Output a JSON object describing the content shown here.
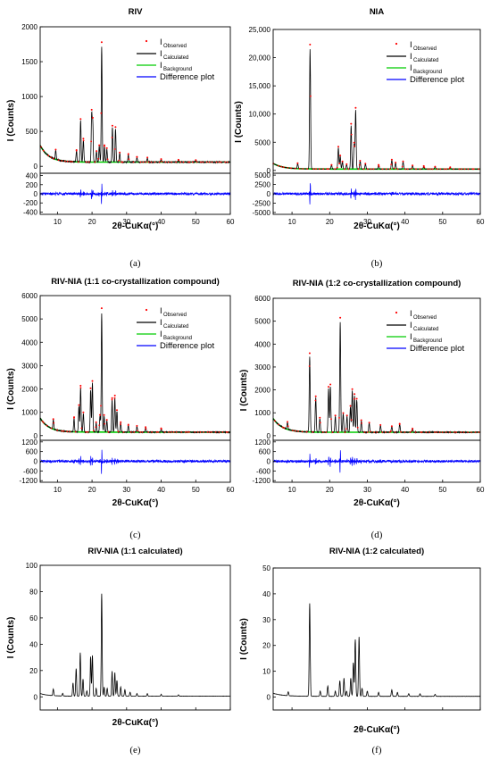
{
  "chart_data": [
    {
      "id": "a",
      "type": "line",
      "title": "RIV",
      "caption": "(a)",
      "xlabel": "2θ-CuKα(°)",
      "ylabel": "I (Counts)",
      "xlim": [
        5,
        60
      ],
      "xticks": [
        "10",
        "20",
        "30",
        "40",
        "50",
        "60"
      ],
      "ylim": [
        -100,
        2000
      ],
      "yticks": [
        "0",
        "500",
        "1000",
        "1500",
        "2000"
      ],
      "diff_ylim": [
        -450,
        450
      ],
      "diff_yticks": [
        "400",
        "200",
        "0",
        "-200",
        "-400"
      ],
      "background": 60,
      "peaks": [
        [
          9.5,
          130
        ],
        [
          15.5,
          160
        ],
        [
          16.7,
          590
        ],
        [
          17.5,
          320
        ],
        [
          19.9,
          680
        ],
        [
          20.2,
          560
        ],
        [
          21.3,
          150
        ],
        [
          22.1,
          230
        ],
        [
          22.8,
          1650
        ],
        [
          23.6,
          230
        ],
        [
          24.3,
          190
        ],
        [
          25.9,
          500
        ],
        [
          26.8,
          480
        ],
        [
          28.0,
          130
        ],
        [
          30.5,
          110
        ],
        [
          33,
          70
        ],
        [
          36,
          60
        ],
        [
          40,
          40
        ],
        [
          45,
          30
        ],
        [
          50,
          25
        ]
      ],
      "legend": [
        "Observed",
        "Calculated",
        "Background",
        "Difference plot"
      ]
    },
    {
      "id": "b",
      "type": "line",
      "title": "NIA",
      "caption": "(b)",
      "xlabel": "2θ-CuKα(°)",
      "ylabel": "I (Counts)",
      "xlim": [
        5,
        60
      ],
      "xticks": [
        "10",
        "20",
        "30",
        "40",
        "50",
        "60"
      ],
      "ylim": [
        -500,
        25000
      ],
      "yticks": [
        "0",
        "5000",
        "10,000",
        "15,000",
        "20,000",
        "25,000"
      ],
      "diff_ylim": [
        -5500,
        5500
      ],
      "diff_yticks": [
        "5000",
        "2500",
        "0",
        "-2500",
        "-5000"
      ],
      "background": 250,
      "peaks": [
        [
          11.5,
          900
        ],
        [
          14.8,
          21200
        ],
        [
          20.5,
          700
        ],
        [
          22.3,
          3800
        ],
        [
          22.8,
          2300
        ],
        [
          23.4,
          1300
        ],
        [
          24.5,
          800
        ],
        [
          25.7,
          7700
        ],
        [
          26.5,
          4400
        ],
        [
          26.9,
          10400
        ],
        [
          28.1,
          1400
        ],
        [
          29.5,
          900
        ],
        [
          33,
          700
        ],
        [
          36.5,
          1600
        ],
        [
          37.5,
          1100
        ],
        [
          39.5,
          1300
        ],
        [
          42,
          600
        ],
        [
          45,
          500
        ],
        [
          48,
          400
        ],
        [
          52,
          300
        ]
      ],
      "legend": [
        "Observed",
        "Calculated",
        "Background",
        "Difference plot"
      ]
    },
    {
      "id": "c",
      "type": "line",
      "title": "RIV-NIA (1:1 co-crystallization compound)",
      "caption": "(c)",
      "xlabel": "2θ-CuKα(°)",
      "ylabel": "I (Counts)",
      "xlim": [
        5,
        60
      ],
      "xticks": [
        "10",
        "20",
        "30",
        "40",
        "50",
        "60"
      ],
      "ylim": [
        -200,
        6000
      ],
      "yticks": [
        "0",
        "1000",
        "2000",
        "3000",
        "4000",
        "5000",
        "6000"
      ],
      "diff_ylim": [
        -1300,
        1300
      ],
      "diff_yticks": [
        "1200",
        "600",
        "0",
        "-600",
        "-1200"
      ],
      "background": 150,
      "peaks": [
        [
          8.8,
          400
        ],
        [
          14.8,
          600
        ],
        [
          16.2,
          1100
        ],
        [
          16.7,
          1900
        ],
        [
          17.5,
          800
        ],
        [
          19.6,
          1800
        ],
        [
          20.1,
          2100
        ],
        [
          21.2,
          400
        ],
        [
          22.3,
          700
        ],
        [
          22.8,
          5100
        ],
        [
          23.5,
          700
        ],
        [
          24.3,
          500
        ],
        [
          25.8,
          1400
        ],
        [
          26.6,
          1500
        ],
        [
          27.2,
          900
        ],
        [
          28.3,
          400
        ],
        [
          30.5,
          300
        ],
        [
          33,
          250
        ],
        [
          35.5,
          200
        ],
        [
          40,
          150
        ]
      ],
      "legend": [
        "Observed",
        "Calculated",
        "Background",
        "Difference plot"
      ]
    },
    {
      "id": "d",
      "type": "line",
      "title": "RIV-NIA (1:2 co-crystallization compound)",
      "caption": "(d)",
      "xlabel": "2θ-CuKα(°)",
      "ylabel": "I (Counts)",
      "xlim": [
        5,
        60
      ],
      "xticks": [
        "10",
        "20",
        "30",
        "40",
        "50",
        "60"
      ],
      "ylim": [
        -200,
        6000
      ],
      "yticks": [
        "0",
        "1000",
        "2000",
        "3000",
        "4000",
        "5000",
        "6000"
      ],
      "diff_ylim": [
        -1300,
        1300
      ],
      "diff_yticks": [
        "1200",
        "600",
        "0",
        "-600",
        "-1200"
      ],
      "background": 150,
      "peaks": [
        [
          8.8,
          300
        ],
        [
          14.7,
          3300
        ],
        [
          16.3,
          1500
        ],
        [
          17.4,
          600
        ],
        [
          19.7,
          1900
        ],
        [
          20.2,
          2000
        ],
        [
          21.5,
          700
        ],
        [
          22.8,
          4800
        ],
        [
          23.6,
          800
        ],
        [
          24.6,
          700
        ],
        [
          25.5,
          1100
        ],
        [
          26.0,
          1800
        ],
        [
          26.6,
          1600
        ],
        [
          27.2,
          1400
        ],
        [
          28.4,
          500
        ],
        [
          30.5,
          400
        ],
        [
          33.5,
          300
        ],
        [
          36.5,
          250
        ],
        [
          38.6,
          350
        ],
        [
          42,
          150
        ]
      ],
      "legend": [
        "Observed",
        "Calculated",
        "Background",
        "Difference plot"
      ]
    },
    {
      "id": "e",
      "type": "line",
      "title": "RIV-NIA (1:1 calculated)",
      "caption": "(e)",
      "xlabel": "2θ-CuKα(°)",
      "ylabel": "I (Counts)",
      "xlim": [
        5,
        60
      ],
      "xticks": [],
      "ylim": [
        -10,
        100
      ],
      "yticks": [
        "0",
        "20",
        "40",
        "60",
        "80",
        "100"
      ],
      "background": 0.5,
      "peaks": [
        [
          8.8,
          5
        ],
        [
          11.5,
          2
        ],
        [
          14.5,
          10
        ],
        [
          15.4,
          21
        ],
        [
          16.6,
          33
        ],
        [
          17.4,
          13
        ],
        [
          18.5,
          4
        ],
        [
          19.6,
          30
        ],
        [
          20.1,
          31
        ],
        [
          21.2,
          6
        ],
        [
          22.8,
          78
        ],
        [
          23.5,
          7
        ],
        [
          24.4,
          6
        ],
        [
          25.8,
          19
        ],
        [
          26.6,
          18
        ],
        [
          27.2,
          12
        ],
        [
          28.3,
          7
        ],
        [
          29.5,
          5
        ],
        [
          31,
          3
        ],
        [
          33,
          2
        ],
        [
          36,
          2
        ],
        [
          40,
          1.5
        ],
        [
          45,
          1
        ]
      ]
    },
    {
      "id": "f",
      "type": "line",
      "title": "RIV-NIA (1:2 calculated)",
      "caption": "(f)",
      "xlabel": "2θ-CuKα(°)",
      "ylabel": "I (Counts)",
      "xlim": [
        5,
        60
      ],
      "xticks": [],
      "ylim": [
        -5,
        50
      ],
      "yticks": [
        "0",
        "10",
        "20",
        "30",
        "40",
        "50"
      ],
      "background": 0.3,
      "peaks": [
        [
          9,
          1.5
        ],
        [
          14.7,
          36
        ],
        [
          17.5,
          2
        ],
        [
          19.5,
          4
        ],
        [
          21.5,
          2
        ],
        [
          22.7,
          6
        ],
        [
          23.8,
          7
        ],
        [
          24.5,
          2
        ],
        [
          25.6,
          7
        ],
        [
          26.3,
          13
        ],
        [
          26.8,
          22
        ],
        [
          27.8,
          23
        ],
        [
          28.6,
          3
        ],
        [
          30,
          2
        ],
        [
          33,
          1.5
        ],
        [
          36.5,
          2.5
        ],
        [
          38,
          1.5
        ],
        [
          41,
          1
        ],
        [
          44,
          1
        ],
        [
          48,
          0.8
        ]
      ]
    }
  ],
  "colors": {
    "observed": "#ff0000",
    "calculated": "#000000",
    "background": "#00cc00",
    "difference": "#0000ff"
  }
}
